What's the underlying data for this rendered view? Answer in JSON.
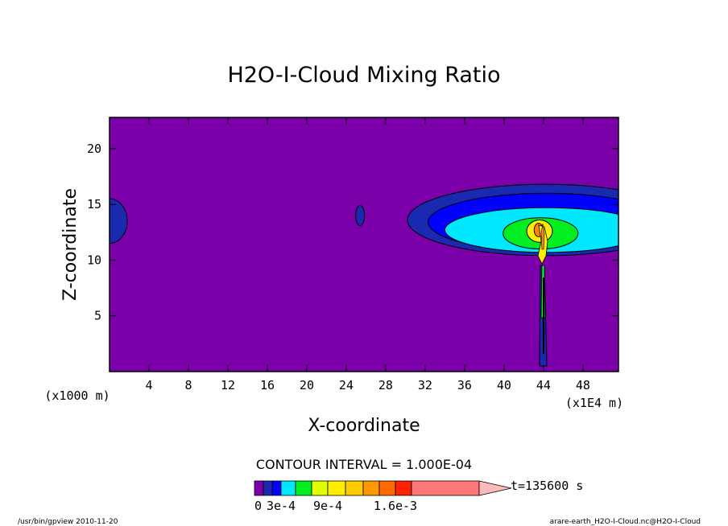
{
  "chart_data": {
    "type": "heatmap",
    "title": "H2O-I-Cloud Mixing Ratio",
    "xlabel": "X-coordinate",
    "ylabel": "Z-coordinate",
    "x_unit_left": "(x1000 m)",
    "x_unit_right": "(x1E4 m)",
    "xlim": [
      0,
      51.6
    ],
    "ylim": [
      0,
      22.8
    ],
    "xticks": [
      {
        "value": 4,
        "label": "4"
      },
      {
        "value": 8,
        "label": "8"
      },
      {
        "value": 12,
        "label": "12"
      },
      {
        "value": 16,
        "label": "16"
      },
      {
        "value": 20,
        "label": "20"
      },
      {
        "value": 24,
        "label": "24"
      },
      {
        "value": 28,
        "label": "28"
      },
      {
        "value": 32,
        "label": "32"
      },
      {
        "value": 36,
        "label": "36"
      },
      {
        "value": 40,
        "label": "40"
      },
      {
        "value": 44,
        "label": "44"
      },
      {
        "value": 48,
        "label": "48"
      }
    ],
    "yticks": [
      {
        "value": 5,
        "label": "5"
      },
      {
        "value": 10,
        "label": "10"
      },
      {
        "value": 15,
        "label": "15"
      },
      {
        "value": 20,
        "label": "20"
      }
    ],
    "background_color": "#7b00aa",
    "features": [
      {
        "name": "left-edge-cloud",
        "cx": 0,
        "cz": 13.5,
        "rx": 1.8,
        "rz": 2.0,
        "level_color": "#1a2ab0"
      },
      {
        "name": "small-cloud",
        "cx": 25.4,
        "cz": 14.0,
        "rx": 0.45,
        "rz": 0.9,
        "level_color": "#1a2ab0"
      },
      {
        "name": "anvil-outer",
        "cx": 44.2,
        "cz": 13.6,
        "rx": 14.0,
        "rz": 3.2,
        "level_color": "#1a2ab0"
      },
      {
        "name": "anvil-middle",
        "cx": 44.3,
        "cz": 13.4,
        "rx": 12.0,
        "rz": 2.6,
        "level_color": "#0000ff"
      },
      {
        "name": "anvil-inner",
        "cx": 44.3,
        "cz": 12.7,
        "rx": 10.3,
        "rz": 2.0,
        "level_color": "#00e8ff"
      },
      {
        "name": "core-green",
        "cx": 43.7,
        "cz": 12.4,
        "rx": 3.8,
        "rz": 1.4,
        "level_color": "#00ee22"
      },
      {
        "name": "core-yellow",
        "cx": 43.6,
        "cz": 12.6,
        "rx": 1.3,
        "rz": 1.0,
        "level_color": "#ffee00"
      },
      {
        "name": "core-orange",
        "cx": 43.5,
        "cz": 12.7,
        "rx": 0.45,
        "rz": 0.6,
        "level_color": "#ff8800"
      }
    ],
    "contour_interval_text": "CONTOUR INTERVAL = 1.000E-04",
    "colorbar": {
      "colors": [
        "#7b00aa",
        "#1a2ab0",
        "#0000ff",
        "#00e8ff",
        "#00ee22",
        "#ddff00",
        "#ffee00",
        "#ffcc00",
        "#ff9900",
        "#ff6a00",
        "#ff2200",
        "#ff7777",
        "#ffbbbb"
      ],
      "labels": [
        {
          "index": 0,
          "text": "0"
        },
        {
          "index": 3,
          "text": "3e-4"
        },
        {
          "index": 6,
          "text": "9e-4"
        },
        {
          "index": 10,
          "text": "1.6e-3"
        }
      ]
    },
    "time_label": "t=135600 s"
  },
  "footer": {
    "left_text": "/usr/bin/gpview  2010-11-20",
    "right_text": "arare-earth_H2O-I-Cloud.nc@H2O-I-Cloud"
  }
}
